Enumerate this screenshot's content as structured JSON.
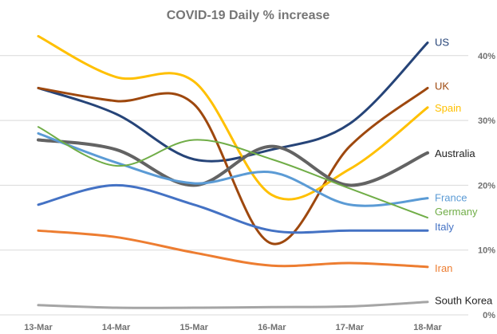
{
  "chart_data": {
    "type": "line",
    "title": "COVID-19 Daily % increase",
    "xlabel": "",
    "ylabel": "",
    "categories": [
      "13-Mar",
      "14-Mar",
      "15-Mar",
      "16-Mar",
      "17-Mar",
      "18-Mar"
    ],
    "y_ticks": [
      "0%",
      "10%",
      "20%",
      "30%",
      "40%"
    ],
    "ylim": [
      0,
      40
    ],
    "y_axis_side": "right",
    "grid": true,
    "smooth": true,
    "legend": "inline-right",
    "series": [
      {
        "name": "US",
        "color": "#264478",
        "values": [
          35,
          31,
          24,
          25.5,
          29.5,
          42
        ]
      },
      {
        "name": "UK",
        "color": "#9E480E",
        "values": [
          35,
          33,
          32.5,
          11,
          26,
          35
        ]
      },
      {
        "name": "Spain",
        "color": "#FFC000",
        "values": [
          43,
          36.7,
          36,
          18.5,
          22.5,
          32
        ]
      },
      {
        "name": "Australia",
        "color": "#636363",
        "values": [
          27,
          25.5,
          20,
          26,
          20,
          25
        ]
      },
      {
        "name": "France",
        "color": "#5B9BD5",
        "values": [
          28,
          23.5,
          20.3,
          22,
          17,
          18
        ]
      },
      {
        "name": "Germany",
        "color": "#70AD47",
        "values": [
          29,
          23,
          27,
          24,
          19.5,
          15
        ]
      },
      {
        "name": "Italy",
        "color": "#4472C4",
        "values": [
          17,
          20,
          17,
          13,
          13,
          13
        ]
      },
      {
        "name": "Iran",
        "color": "#ED7D31",
        "values": [
          13,
          12,
          9.6,
          7.6,
          8,
          7.4
        ]
      },
      {
        "name": "South Korea",
        "color": "#A5A5A5",
        "values": [
          1.5,
          1.1,
          1.1,
          1.2,
          1.3,
          2
        ]
      }
    ]
  }
}
